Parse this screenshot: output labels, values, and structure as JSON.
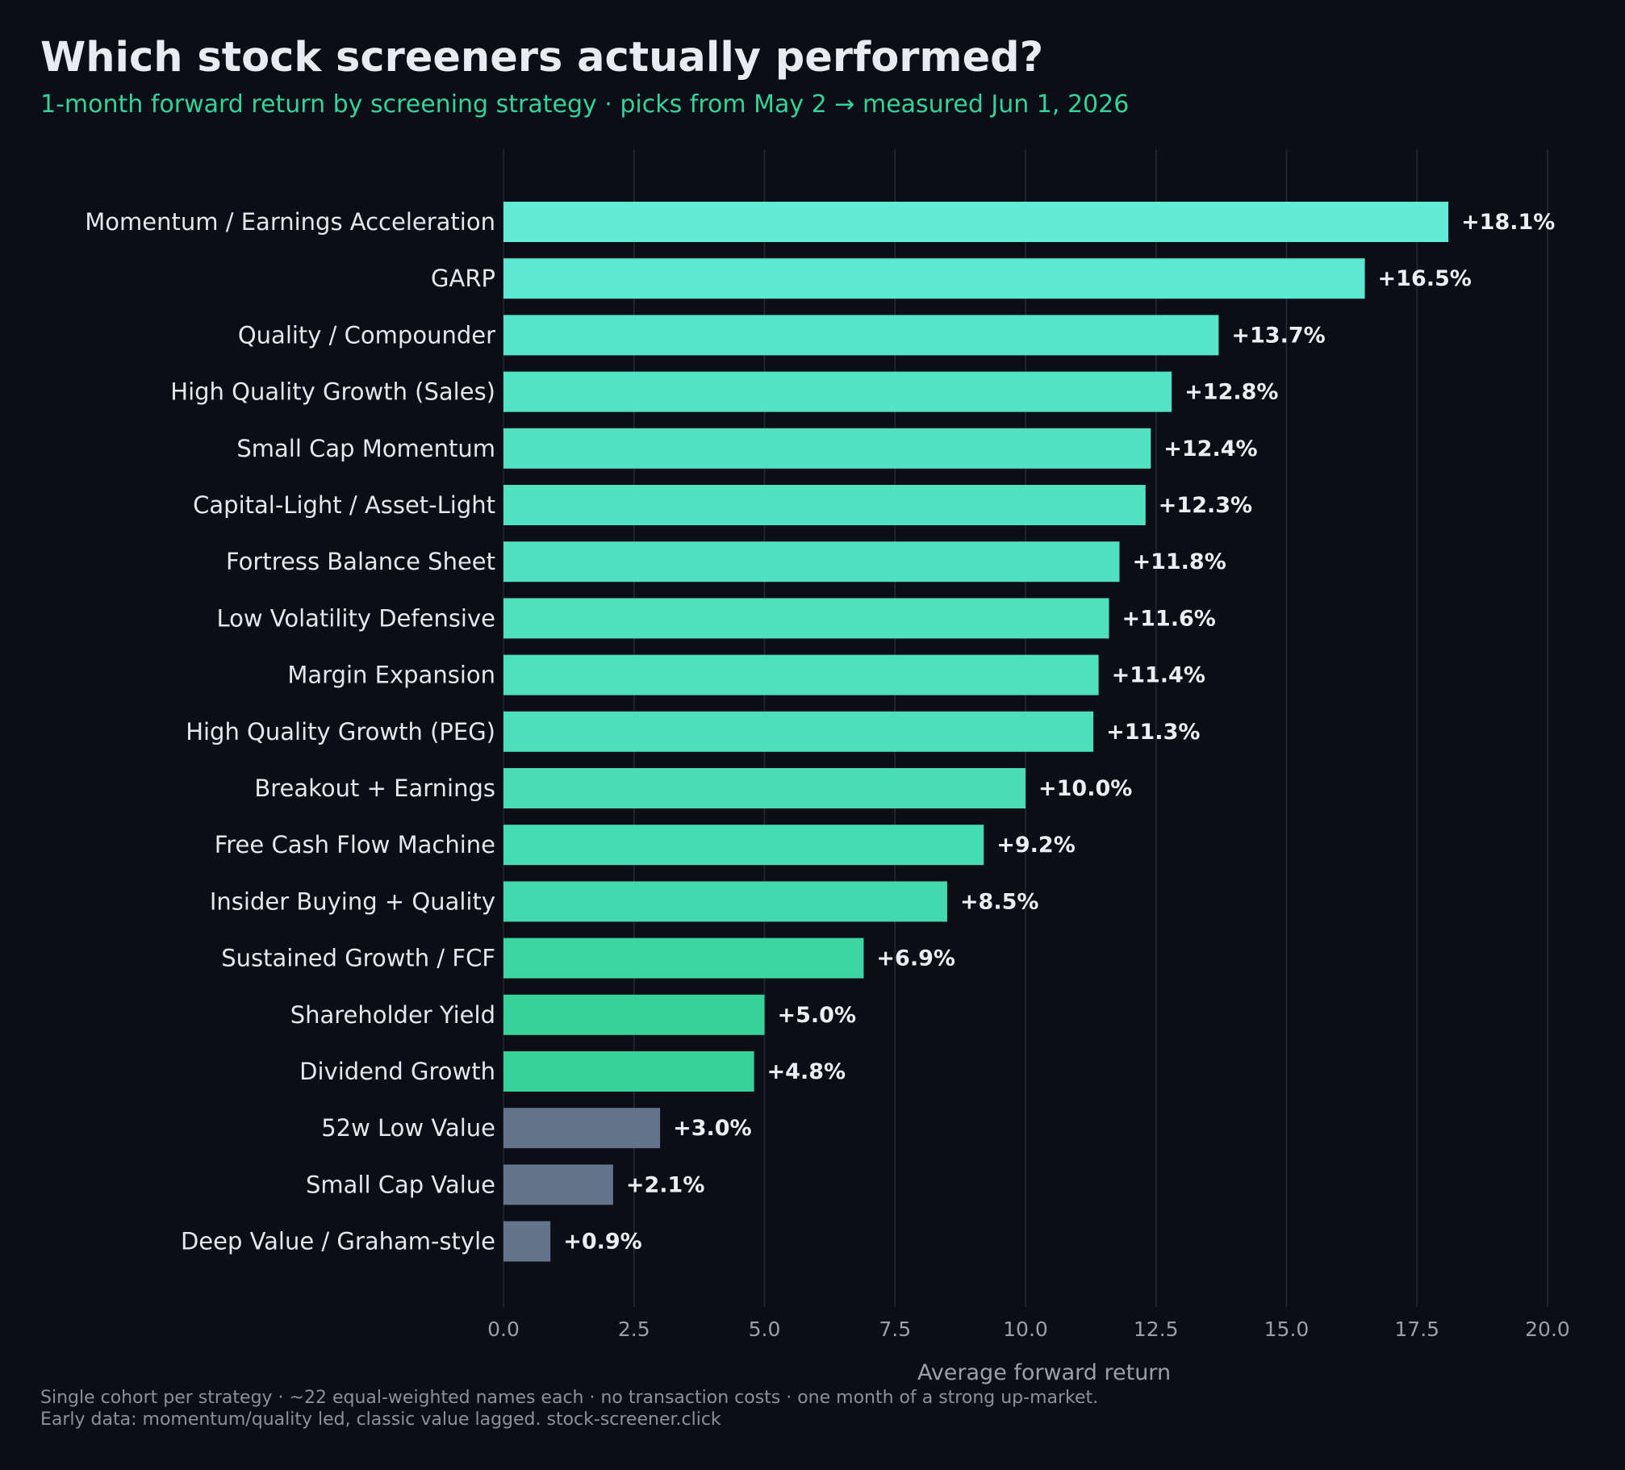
{
  "chart_data": {
    "type": "bar",
    "orientation": "horizontal",
    "title": "Which stock screeners actually performed?",
    "subtitle": "1-month forward return by screening strategy  ·  picks from May 2 → measured Jun 1, 2026",
    "xlabel": "Average forward return",
    "ylabel": "",
    "xlim": [
      0,
      20
    ],
    "xticks": [
      "0.0",
      "2.5",
      "5.0",
      "7.5",
      "10.0",
      "12.5",
      "15.0",
      "17.5",
      "20.0"
    ],
    "grid": "vertical",
    "categories": [
      "Momentum / Earnings Acceleration",
      "GARP",
      "Quality / Compounder",
      "High Quality Growth (Sales)",
      "Small Cap Momentum",
      "Capital-Light / Asset-Light",
      "Fortress Balance Sheet",
      "Low Volatility Defensive",
      "Margin Expansion",
      "High Quality Growth (PEG)",
      "Breakout + Earnings",
      "Free Cash Flow Machine",
      "Insider Buying + Quality",
      "Sustained Growth / FCF",
      "Shareholder Yield",
      "Dividend Growth",
      "52w Low Value",
      "Small Cap Value",
      "Deep Value / Graham-style"
    ],
    "values": [
      18.1,
      16.5,
      13.7,
      12.8,
      12.4,
      12.3,
      11.8,
      11.6,
      11.4,
      11.3,
      10.0,
      9.2,
      8.5,
      6.9,
      5.0,
      4.8,
      3.0,
      2.1,
      0.9
    ],
    "value_labels": [
      "+18.1%",
      "+16.5%",
      "+13.7%",
      "+12.8%",
      "+12.4%",
      "+12.3%",
      "+11.8%",
      "+11.6%",
      "+11.4%",
      "+11.3%",
      "+10.0%",
      "+9.2%",
      "+8.5%",
      "+6.9%",
      "+5.0%",
      "+4.8%",
      "+3.0%",
      "+2.1%",
      "+0.9%"
    ],
    "colors": [
      "#62ecd8",
      "#5de8d2",
      "#55e5c8",
      "#52e3c4",
      "#51e2c2",
      "#51e2c2",
      "#4fe1bf",
      "#4fe0be",
      "#4edfbd",
      "#4ddfbc",
      "#4adcb7",
      "#46dbb3",
      "#43d9ae",
      "#3cd6a3",
      "#35d399",
      "#35d399",
      "#64748b",
      "#64748b",
      "#64748b"
    ]
  },
  "colors": {
    "background": "#0b0e16",
    "title": "#e9ebf1",
    "subtitle": "#34d399",
    "gridline": "#242a36",
    "tick_label": "#9aa0aa",
    "category_label": "#e5e7eb",
    "value_label": "#eceef2",
    "footnote": "#8a909c"
  },
  "footnotes": [
    "Single cohort per strategy · ~22 equal-weighted names each · no transaction costs · one month of a strong up-market.",
    "Early data: momentum/quality led, classic value lagged.   stock-screener.click"
  ]
}
